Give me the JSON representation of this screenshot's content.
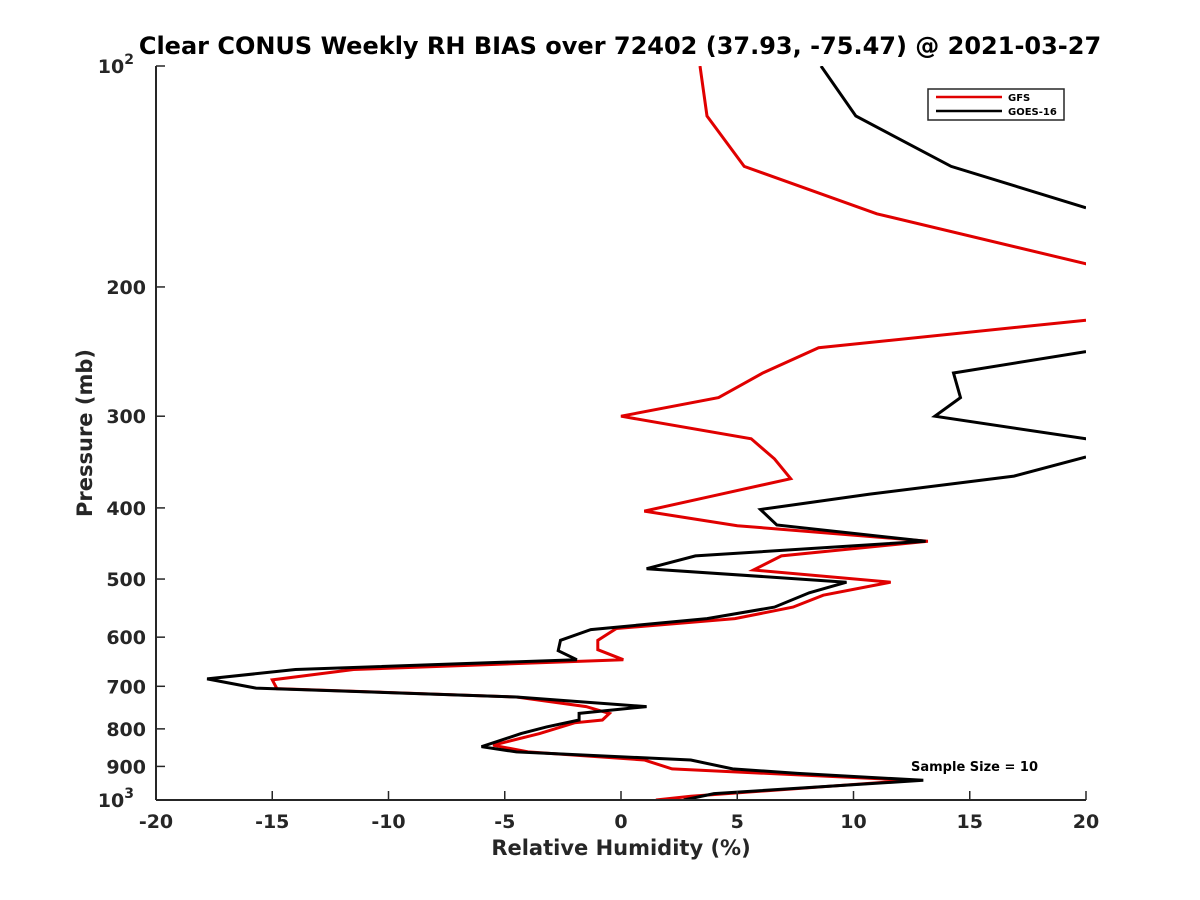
{
  "chart_data": {
    "type": "line",
    "title": "Clear CONUS Weekly RH BIAS over 72402 (37.93, -75.47) @ 2021-03-27",
    "xlabel": "Relative Humidity (%)",
    "ylabel": "Pressure (mb)",
    "xlim": [
      -20,
      20
    ],
    "ylim": [
      100,
      1000
    ],
    "yscale": "log",
    "y_reversed": true,
    "xticks": [
      -20,
      -15,
      -10,
      -5,
      0,
      5,
      10,
      15,
      20
    ],
    "xtick_labels": [
      "-20",
      "-15",
      "-10",
      "-5",
      "0",
      "5",
      "10",
      "15",
      "20"
    ],
    "yticks": [
      100,
      200,
      300,
      400,
      500,
      600,
      700,
      800,
      900,
      1000
    ],
    "ytick_labels": [
      {
        "value": 100,
        "base": "10",
        "exp": "2"
      },
      {
        "value": 200,
        "base": "200",
        "exp": ""
      },
      {
        "value": 300,
        "base": "300",
        "exp": ""
      },
      {
        "value": 400,
        "base": "400",
        "exp": ""
      },
      {
        "value": 500,
        "base": "500",
        "exp": ""
      },
      {
        "value": 600,
        "base": "600",
        "exp": ""
      },
      {
        "value": 700,
        "base": "700",
        "exp": ""
      },
      {
        "value": 800,
        "base": "800",
        "exp": ""
      },
      {
        "value": 900,
        "base": "900",
        "exp": ""
      },
      {
        "value": 1000,
        "base": "10",
        "exp": "3"
      }
    ],
    "legend_position": "top-right",
    "annotation": "Sample Size = 10",
    "series": [
      {
        "name": "GFS",
        "color": "#e00000",
        "points": [
          [
            3.4,
            100
          ],
          [
            3.7,
            117
          ],
          [
            5.3,
            137
          ],
          [
            11.0,
            159
          ],
          [
            20.0,
            186
          ],
          [
            20.3,
            188
          ],
          null,
          [
            20.0,
            222
          ],
          [
            8.5,
            242
          ],
          [
            6.1,
            262
          ],
          [
            4.2,
            283
          ],
          [
            0.0,
            300
          ],
          [
            5.6,
            322
          ],
          [
            6.6,
            343
          ],
          [
            7.3,
            365
          ],
          [
            4.0,
            385
          ],
          [
            1.0,
            404
          ],
          [
            5.0,
            423
          ],
          [
            13.2,
            444
          ],
          [
            6.9,
            465
          ],
          [
            5.7,
            486
          ],
          [
            11.6,
            505
          ],
          [
            8.7,
            526
          ],
          [
            7.4,
            546
          ],
          [
            4.9,
            566
          ],
          [
            -0.2,
            584
          ],
          [
            -1.0,
            606
          ],
          [
            -1.0,
            624
          ],
          [
            0.1,
            644
          ],
          [
            -11.5,
            664
          ],
          [
            -15.0,
            686
          ],
          [
            -14.8,
            705
          ],
          [
            -4.5,
            724
          ],
          [
            -1.5,
            746
          ],
          [
            -0.5,
            762
          ],
          [
            -0.8,
            778
          ],
          [
            -2.0,
            785
          ],
          [
            -3.5,
            812
          ],
          [
            -5.5,
            842
          ],
          [
            -4.0,
            860
          ],
          [
            1.0,
            882
          ],
          [
            2.2,
            907
          ],
          [
            12.5,
            940
          ],
          [
            3.0,
            988
          ],
          [
            1.5,
            1000
          ]
        ]
      },
      {
        "name": "GOES-16",
        "color": "#000000",
        "points": [
          [
            8.6,
            100
          ],
          [
            10.1,
            117
          ],
          [
            14.2,
            137
          ],
          [
            20.0,
            156
          ],
          null,
          [
            20.0,
            245
          ],
          [
            14.3,
            262
          ],
          [
            14.6,
            283
          ],
          [
            13.5,
            300
          ],
          [
            20.0,
            322
          ],
          [
            20.4,
            324
          ],
          null,
          [
            20.0,
            341
          ],
          [
            16.9,
            362
          ],
          [
            10.7,
            383
          ],
          [
            6.0,
            402
          ],
          [
            6.7,
            422
          ],
          [
            13.1,
            444
          ],
          [
            3.2,
            465
          ],
          [
            1.1,
            484
          ],
          [
            9.7,
            505
          ],
          [
            8.1,
            522
          ],
          [
            6.6,
            546
          ],
          [
            3.7,
            566
          ],
          [
            -1.3,
            586
          ],
          [
            -2.6,
            606
          ],
          [
            -2.7,
            626
          ],
          [
            -1.9,
            644
          ],
          [
            -14.0,
            664
          ],
          [
            -17.8,
            684
          ],
          [
            -15.7,
            704
          ],
          [
            -4.5,
            724
          ],
          [
            1.1,
            746
          ],
          [
            -1.8,
            762
          ],
          [
            -1.8,
            778
          ],
          [
            -3.2,
            795
          ],
          [
            -4.3,
            812
          ],
          [
            -6.0,
            846
          ],
          [
            -4.5,
            860
          ],
          [
            3.0,
            882
          ],
          [
            4.8,
            907
          ],
          [
            7.6,
            920
          ],
          [
            13.0,
            940
          ],
          [
            4.0,
            980
          ],
          [
            2.7,
            1000
          ]
        ]
      }
    ]
  }
}
